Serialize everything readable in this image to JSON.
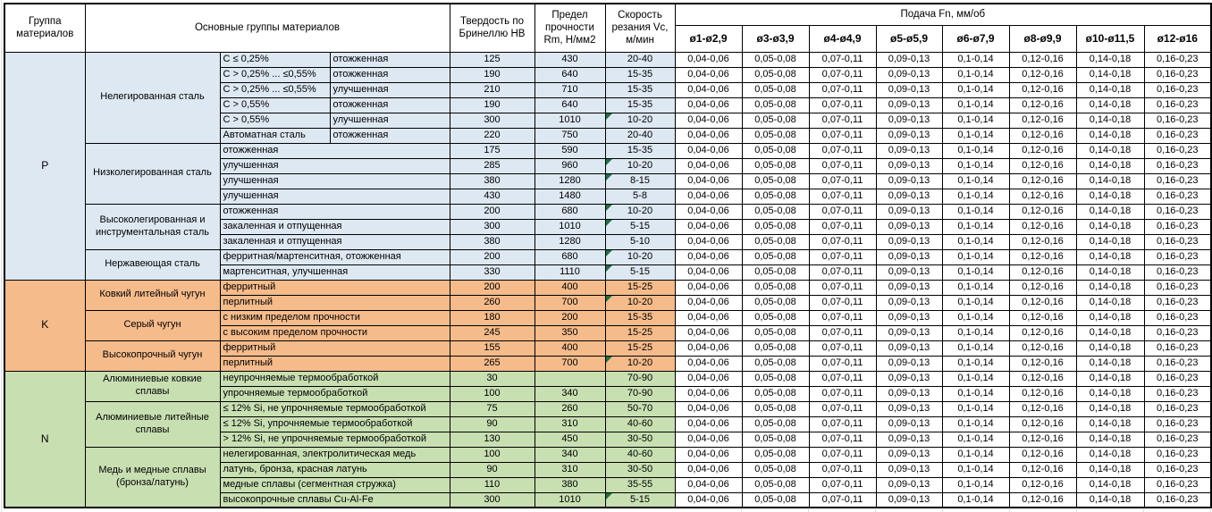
{
  "table": {
    "headers": {
      "group": "Группа материалов",
      "main_groups": "Основные группы материалов",
      "hardness": "Твердость по Бринеллю HB",
      "strength": "Предел прочности Rm, Н/мм2",
      "speed": "Скорость резания Vc, м/мин",
      "feed_title": "Подача Fn, мм/об",
      "feed_columns": [
        "ø1-ø2,9",
        "ø3-ø3,9",
        "ø4-ø4,9",
        "ø5-ø5,9",
        "ø6-ø7,9",
        "ø8-ø9,9",
        "ø10-ø11,5",
        "ø12-ø16"
      ]
    },
    "feed_values": [
      "0,04-0,06",
      "0,05-0,08",
      "0,07-0,11",
      "0,09-0,13",
      "0,1-0,14",
      "0,12-0,16",
      "0,14-0,18",
      "0,16-0,23"
    ],
    "colors": {
      "group_p": "#dde8f2",
      "group_k": "#f6bb8b",
      "group_n": "#c8dfb2",
      "flag": "#1f7145"
    },
    "groups": [
      {
        "label": "P",
        "color": "#dde8f2",
        "subgroups": [
          {
            "name": "Нелегированная сталь",
            "rows": [
              {
                "spec": "C ≤ 0,25%",
                "cond": "отожженная",
                "hb": "125",
                "rm": "430",
                "vc": "20-40",
                "flag": false
              },
              {
                "spec": "C > 0,25% ... ≤0,55%",
                "cond": "отожженная",
                "hb": "190",
                "rm": "640",
                "vc": "15-35",
                "flag": false
              },
              {
                "spec": "C > 0,25% ... ≤0,55%",
                "cond": "улучшенная",
                "hb": "210",
                "rm": "710",
                "vc": "15-35",
                "flag": false
              },
              {
                "spec": "C > 0,55%",
                "cond": "отожженная",
                "hb": "190",
                "rm": "640",
                "vc": "15-35",
                "flag": false
              },
              {
                "spec": "C > 0,55%",
                "cond": "улучшенная",
                "hb": "300",
                "rm": "1010",
                "vc": "10-20",
                "flag": true
              },
              {
                "spec": "Автоматная сталь",
                "cond": "отожженная",
                "hb": "220",
                "rm": "750",
                "vc": "20-40",
                "flag": false
              }
            ]
          },
          {
            "name": "Низколегированная сталь",
            "rows": [
              {
                "spec": "отожженная",
                "cond": null,
                "hb": "175",
                "rm": "590",
                "vc": "15-35",
                "flag": false
              },
              {
                "spec": "улучшенная",
                "cond": null,
                "hb": "285",
                "rm": "960",
                "vc": "10-20",
                "flag": true
              },
              {
                "spec": "улучшенная",
                "cond": null,
                "hb": "380",
                "rm": "1280",
                "vc": "8-15",
                "flag": true
              },
              {
                "spec": "улучшенная",
                "cond": null,
                "hb": "430",
                "rm": "1480",
                "vc": "5-8",
                "flag": false
              }
            ]
          },
          {
            "name": "Высоколегированная и инструментальная сталь",
            "rows": [
              {
                "spec": "отожженная",
                "cond": null,
                "hb": "200",
                "rm": "680",
                "vc": "10-20",
                "flag": true
              },
              {
                "spec": "закаленная и отпущенная",
                "cond": null,
                "hb": "300",
                "rm": "1010",
                "vc": "5-15",
                "flag": true
              },
              {
                "spec": "закаленная и отпущенная",
                "cond": null,
                "hb": "380",
                "rm": "1280",
                "vc": "5-10",
                "flag": false
              }
            ]
          },
          {
            "name": "Нержавеющая сталь",
            "rows": [
              {
                "spec": "ферритная/мартенситная, отожженная",
                "cond": null,
                "hb": "200",
                "rm": "680",
                "vc": "10-20",
                "flag": true
              },
              {
                "spec": "мартенситная, улучшенная",
                "cond": null,
                "hb": "330",
                "rm": "1110",
                "vc": "5-15",
                "flag": true
              }
            ]
          }
        ]
      },
      {
        "label": "K",
        "color": "#f6bb8b",
        "subgroups": [
          {
            "name": "Ковкий литейный чугун",
            "rows": [
              {
                "spec": "ферритный",
                "cond": null,
                "hb": "200",
                "rm": "400",
                "vc": "15-25",
                "flag": false
              },
              {
                "spec": "перлитный",
                "cond": null,
                "hb": "260",
                "rm": "700",
                "vc": "10-20",
                "flag": true
              }
            ]
          },
          {
            "name": "Серый чугун",
            "rows": [
              {
                "spec": "с низким пределом прочности",
                "cond": null,
                "hb": "180",
                "rm": "200",
                "vc": "15-35",
                "flag": false
              },
              {
                "spec": "с высоким пределом прочности",
                "cond": null,
                "hb": "245",
                "rm": "350",
                "vc": "15-25",
                "flag": false
              }
            ]
          },
          {
            "name": "Высокопрочный чугун",
            "rows": [
              {
                "spec": "ферритный",
                "cond": null,
                "hb": "155",
                "rm": "400",
                "vc": "15-25",
                "flag": false
              },
              {
                "spec": "перлитный",
                "cond": null,
                "hb": "265",
                "rm": "700",
                "vc": "10-20",
                "flag": true
              }
            ]
          }
        ]
      },
      {
        "label": "N",
        "color": "#c8dfb2",
        "subgroups": [
          {
            "name": "Алюминиевые ковкие сплавы",
            "rows": [
              {
                "spec": "неупрочняемые термообработкой",
                "cond": null,
                "hb": "30",
                "rm": "",
                "vc": "70-90",
                "flag": false
              },
              {
                "spec": "упрочняемые термообработкой",
                "cond": null,
                "hb": "100",
                "rm": "340",
                "vc": "70-90",
                "flag": false
              }
            ]
          },
          {
            "name": "Алюминиевые литейные сплавы",
            "rows": [
              {
                "spec": "≤ 12% Si, не упрочняемые термообработкой",
                "cond": null,
                "hb": "75",
                "rm": "260",
                "vc": "50-70",
                "flag": false
              },
              {
                "spec": "≤ 12% Si, упрочняемые термообработкой",
                "cond": null,
                "hb": "90",
                "rm": "310",
                "vc": "40-60",
                "flag": false
              },
              {
                "spec": "> 12% Si, не упрочняемые термообработкой",
                "cond": null,
                "hb": "130",
                "rm": "450",
                "vc": "30-50",
                "flag": false
              }
            ]
          },
          {
            "name": "Медь и медные сплавы (бронза/латунь)",
            "rows": [
              {
                "spec": "нелегированная, электролитическая медь",
                "cond": null,
                "hb": "100",
                "rm": "340",
                "vc": "40-60",
                "flag": false
              },
              {
                "spec": "латунь, бронза, красная латунь",
                "cond": null,
                "hb": "90",
                "rm": "310",
                "vc": "30-50",
                "flag": false
              },
              {
                "spec": "медные сплавы (сегментная стружка)",
                "cond": null,
                "hb": "110",
                "rm": "380",
                "vc": "35-55",
                "flag": false
              },
              {
                "spec": "высокопрочные сплавы Cu-Al-Fe",
                "cond": null,
                "hb": "300",
                "rm": "1010",
                "vc": "5-15",
                "flag": true
              }
            ]
          }
        ]
      }
    ]
  }
}
